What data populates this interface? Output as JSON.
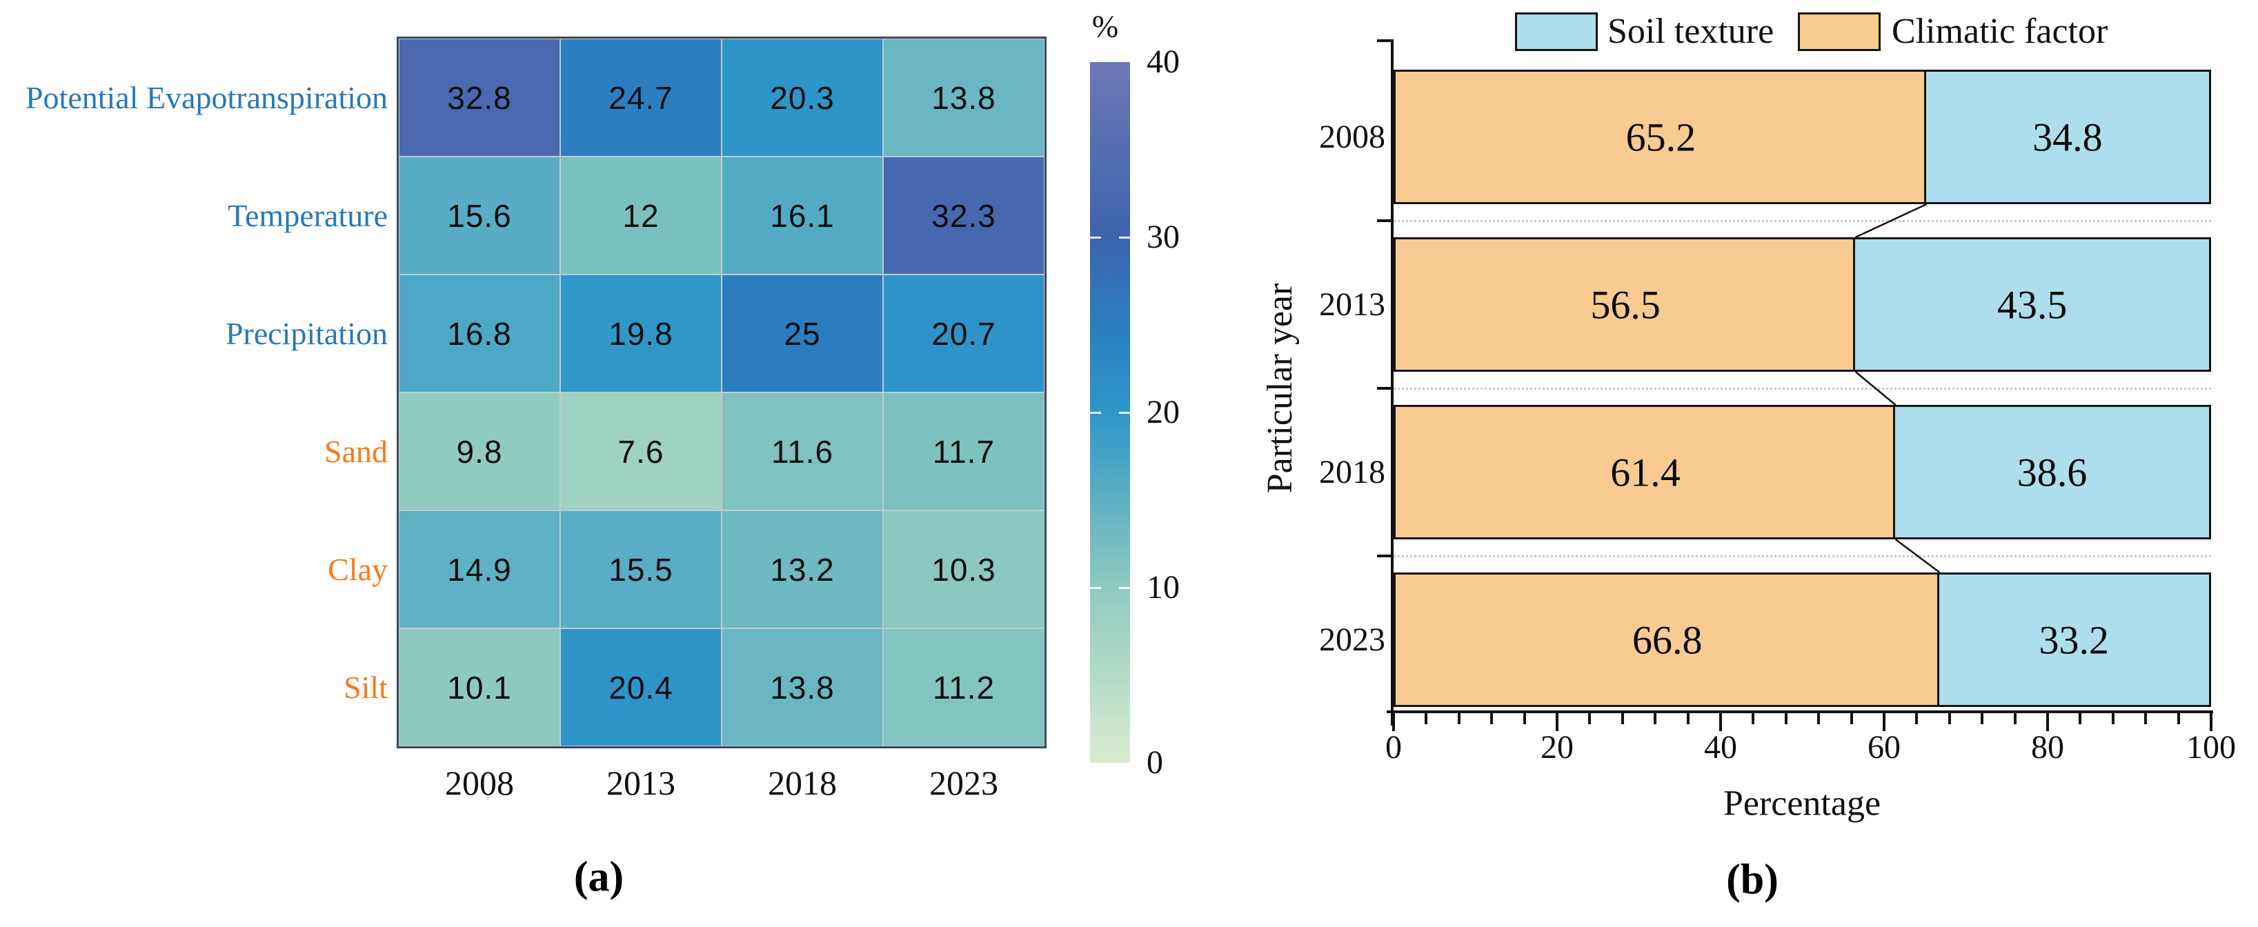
{
  "figure": {
    "caption_a": "(a)",
    "caption_b": "(b)"
  },
  "panel_a": {
    "colorbar_title": "%",
    "colorbar_ticks": [
      40,
      30,
      20,
      10,
      0
    ],
    "colorbar_min": 0,
    "colorbar_max": 40,
    "colormap": [
      {
        "value": 0,
        "color": "#d9ecd0"
      },
      {
        "value": 10,
        "color": "#8ecabf"
      },
      {
        "value": 20,
        "color": "#2e96c9"
      },
      {
        "value": 25,
        "color": "#2b7dc0"
      },
      {
        "value": 30,
        "color": "#3c64ae"
      },
      {
        "value": 40,
        "color": "#6d77b4"
      }
    ],
    "label_colors": {
      "climatic": "#2878b8",
      "soil": "#f8791d"
    },
    "columns": [
      "2008",
      "2013",
      "2018",
      "2023"
    ],
    "rows": [
      {
        "label": "Potential Evapotranspiration",
        "group": "climatic"
      },
      {
        "label": "Temperature",
        "group": "climatic"
      },
      {
        "label": "Precipitation",
        "group": "climatic"
      },
      {
        "label": "Sand",
        "group": "soil"
      },
      {
        "label": "Clay",
        "group": "soil"
      },
      {
        "label": "Silt",
        "group": "soil"
      }
    ],
    "values_text": [
      [
        "32.8",
        "24.7",
        "20.3",
        "13.8"
      ],
      [
        "15.6",
        "12",
        "16.1",
        "32.3"
      ],
      [
        "16.8",
        "19.8",
        "25",
        "20.7"
      ],
      [
        "9.8",
        "7.6",
        "11.6",
        "11.7"
      ],
      [
        "14.9",
        "15.5",
        "13.2",
        "10.3"
      ],
      [
        "10.1",
        "20.4",
        "13.8",
        "11.2"
      ]
    ]
  },
  "panel_b": {
    "legend": [
      {
        "label": "Soil texture",
        "color": "#addeee"
      },
      {
        "label": "Climatic factor",
        "color": "#f9cb92"
      }
    ],
    "xlabel": "Percentage",
    "ylabel": "Particular year",
    "x_ticks": [
      0,
      20,
      40,
      60,
      80,
      100
    ],
    "minor_tick_step": 4,
    "bars": [
      {
        "year": "2008",
        "climatic": "65.2",
        "soil": "34.8"
      },
      {
        "year": "2013",
        "climatic": "56.5",
        "soil": "43.5"
      },
      {
        "year": "2018",
        "climatic": "61.4",
        "soil": "38.6"
      },
      {
        "year": "2023",
        "climatic": "66.8",
        "soil": "33.2"
      }
    ]
  },
  "chart_data": [
    {
      "type": "heatmap",
      "title": "(a)",
      "unit": "%",
      "rows": [
        "Potential Evapotranspiration",
        "Temperature",
        "Precipitation",
        "Sand",
        "Clay",
        "Silt"
      ],
      "columns": [
        "2008",
        "2013",
        "2018",
        "2023"
      ],
      "values": [
        [
          32.8,
          24.7,
          20.3,
          13.8
        ],
        [
          15.6,
          12,
          16.1,
          32.3
        ],
        [
          16.8,
          19.8,
          25,
          20.7
        ],
        [
          9.8,
          7.6,
          11.6,
          11.7
        ],
        [
          14.9,
          15.5,
          13.2,
          10.3
        ],
        [
          10.1,
          20.4,
          13.8,
          11.2
        ]
      ],
      "colorbar": {
        "min": 0,
        "max": 40,
        "ticks": [
          0,
          10,
          20,
          30,
          40
        ],
        "label": "%"
      }
    },
    {
      "type": "bar",
      "orientation": "horizontal",
      "stacked": true,
      "title": "(b)",
      "categories": [
        "2008",
        "2013",
        "2018",
        "2023"
      ],
      "series": [
        {
          "name": "Climatic factor",
          "values": [
            65.2,
            56.5,
            61.4,
            66.8
          ]
        },
        {
          "name": "Soil texture",
          "values": [
            34.8,
            43.5,
            38.6,
            33.2
          ]
        }
      ],
      "xlabel": "Percentage",
      "ylabel": "Particular year",
      "xlim": [
        0,
        100
      ],
      "legend_position": "top",
      "grid": false
    }
  ]
}
